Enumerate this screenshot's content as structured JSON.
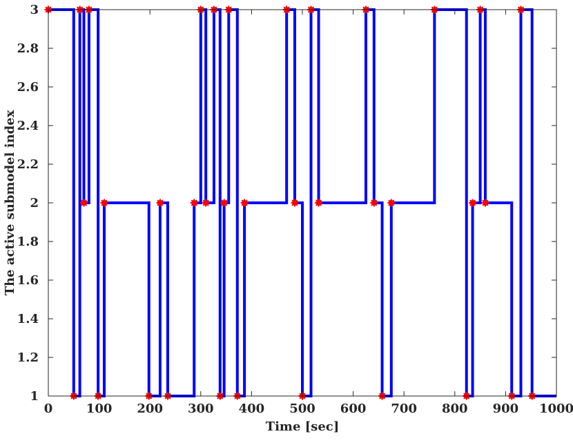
{
  "chart_data": {
    "type": "line",
    "title": "",
    "xlabel": "Time [sec]",
    "ylabel": "The active submodel index",
    "xlim": [
      0,
      1000
    ],
    "ylim": [
      1,
      3
    ],
    "xticks": [
      0,
      100,
      200,
      300,
      400,
      500,
      600,
      700,
      800,
      900,
      1000
    ],
    "yticks": [
      1,
      1.2,
      1.4,
      1.6,
      1.8,
      2,
      2.2,
      2.4,
      2.6,
      2.8,
      3
    ],
    "ytick_labels": [
      "1",
      "1.2",
      "1.4",
      "1.6",
      "1.8",
      "2",
      "2.2",
      "2.4",
      "2.6",
      "2.8",
      "3"
    ],
    "grid": false,
    "series": [
      {
        "step": "post",
        "color": "#0000ff",
        "points": [
          {
            "x": 0,
            "y": 3
          },
          {
            "x": 50,
            "y": 1
          },
          {
            "x": 62,
            "y": 3
          },
          {
            "x": 70,
            "y": 2
          },
          {
            "x": 80,
            "y": 3
          },
          {
            "x": 98,
            "y": 1
          },
          {
            "x": 110,
            "y": 2
          },
          {
            "x": 198,
            "y": 1
          },
          {
            "x": 220,
            "y": 2
          },
          {
            "x": 235,
            "y": 1
          },
          {
            "x": 287,
            "y": 2
          },
          {
            "x": 300,
            "y": 3
          },
          {
            "x": 310,
            "y": 2
          },
          {
            "x": 326,
            "y": 3
          },
          {
            "x": 338,
            "y": 1
          },
          {
            "x": 346,
            "y": 2
          },
          {
            "x": 355,
            "y": 3
          },
          {
            "x": 372,
            "y": 1
          },
          {
            "x": 386,
            "y": 2
          },
          {
            "x": 469,
            "y": 3
          },
          {
            "x": 485,
            "y": 2
          },
          {
            "x": 500,
            "y": 1
          },
          {
            "x": 517,
            "y": 3
          },
          {
            "x": 532,
            "y": 2
          },
          {
            "x": 625,
            "y": 3
          },
          {
            "x": 641,
            "y": 2
          },
          {
            "x": 657,
            "y": 1
          },
          {
            "x": 675,
            "y": 2
          },
          {
            "x": 760,
            "y": 3
          },
          {
            "x": 823,
            "y": 1
          },
          {
            "x": 835,
            "y": 2
          },
          {
            "x": 850,
            "y": 3
          },
          {
            "x": 860,
            "y": 2
          },
          {
            "x": 912,
            "y": 1
          },
          {
            "x": 930,
            "y": 3
          },
          {
            "x": 952,
            "y": 1
          },
          {
            "x": 1000,
            "y": 1
          }
        ],
        "marker_color": "#ff0000",
        "markers": [
          {
            "x": 0,
            "y": 3
          },
          {
            "x": 50,
            "y": 1
          },
          {
            "x": 62,
            "y": 3
          },
          {
            "x": 70,
            "y": 2
          },
          {
            "x": 80,
            "y": 3
          },
          {
            "x": 98,
            "y": 1
          },
          {
            "x": 110,
            "y": 2
          },
          {
            "x": 198,
            "y": 1
          },
          {
            "x": 220,
            "y": 2
          },
          {
            "x": 235,
            "y": 1
          },
          {
            "x": 287,
            "y": 2
          },
          {
            "x": 300,
            "y": 3
          },
          {
            "x": 310,
            "y": 2
          },
          {
            "x": 326,
            "y": 3
          },
          {
            "x": 338,
            "y": 1
          },
          {
            "x": 346,
            "y": 2
          },
          {
            "x": 355,
            "y": 3
          },
          {
            "x": 372,
            "y": 1
          },
          {
            "x": 386,
            "y": 2
          },
          {
            "x": 469,
            "y": 3
          },
          {
            "x": 485,
            "y": 2
          },
          {
            "x": 500,
            "y": 1
          },
          {
            "x": 517,
            "y": 3
          },
          {
            "x": 532,
            "y": 2
          },
          {
            "x": 625,
            "y": 3
          },
          {
            "x": 641,
            "y": 2
          },
          {
            "x": 657,
            "y": 1
          },
          {
            "x": 675,
            "y": 2
          },
          {
            "x": 760,
            "y": 3
          },
          {
            "x": 823,
            "y": 1
          },
          {
            "x": 835,
            "y": 2
          },
          {
            "x": 850,
            "y": 3
          },
          {
            "x": 860,
            "y": 2
          },
          {
            "x": 912,
            "y": 1
          },
          {
            "x": 930,
            "y": 3
          },
          {
            "x": 952,
            "y": 1
          }
        ]
      }
    ]
  }
}
